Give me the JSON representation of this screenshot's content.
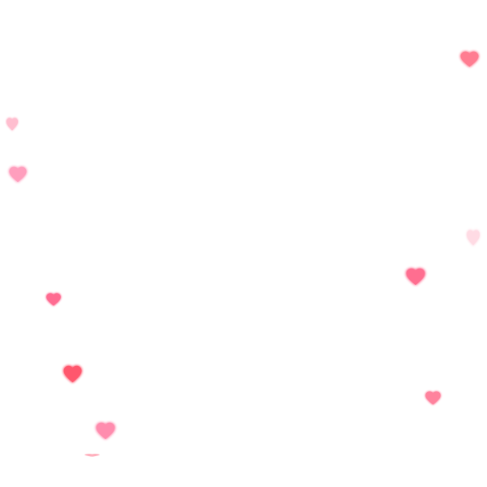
{
  "scene": {
    "background": "#ffffff",
    "heart_icon": "heart-icon",
    "hearts": [
      {
        "color": "#ff6f86",
        "opacity": 0.9
      },
      {
        "color": "#ff8aa8",
        "opacity": 0.55
      },
      {
        "color": "#ff86ad",
        "opacity": 0.8
      },
      {
        "color": "#ffb0c4",
        "opacity": 0.45
      },
      {
        "color": "#ff5f85",
        "opacity": 0.9
      },
      {
        "color": "#ff5c86",
        "opacity": 0.9
      },
      {
        "color": "#ff4f66",
        "opacity": 0.95
      },
      {
        "color": "#ff79a0",
        "opacity": 0.85
      },
      {
        "color": "#ff6d8d",
        "opacity": 0.85
      },
      {
        "color": "#ff7c92",
        "opacity": 0.6
      }
    ]
  }
}
